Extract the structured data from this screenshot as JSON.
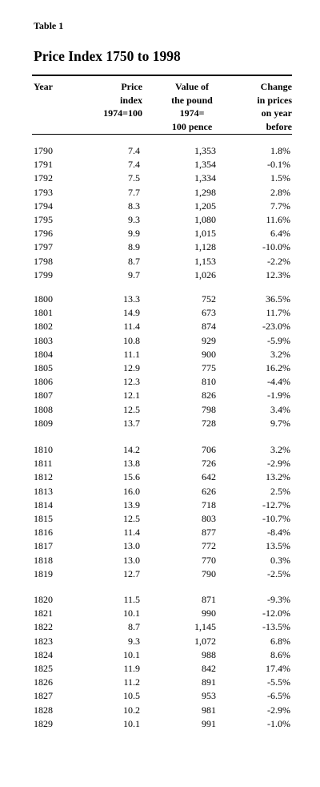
{
  "table_label": "Table 1",
  "title": "Price Index 1750 to 1998",
  "headers": {
    "year": [
      "Year"
    ],
    "index": [
      "Price",
      "index",
      "1974=100"
    ],
    "pound": [
      "Value of",
      "the pound",
      "1974=",
      "100 pence"
    ],
    "change": [
      "Change",
      "in prices",
      "on year",
      "before"
    ]
  },
  "groups": [
    [
      [
        "1790",
        "7.4",
        "1,353",
        "1.8%"
      ],
      [
        "1791",
        "7.4",
        "1,354",
        "-0.1%"
      ],
      [
        "1792",
        "7.5",
        "1,334",
        "1.5%"
      ],
      [
        "1793",
        "7.7",
        "1,298",
        "2.8%"
      ],
      [
        "1794",
        "8.3",
        "1,205",
        "7.7%"
      ],
      [
        "1795",
        "9.3",
        "1,080",
        "11.6%"
      ],
      [
        "1796",
        "9.9",
        "1,015",
        "6.4%"
      ],
      [
        "1797",
        "8.9",
        "1,128",
        "-10.0%"
      ],
      [
        "1798",
        "8.7",
        "1,153",
        "-2.2%"
      ],
      [
        "1799",
        "9.7",
        "1,026",
        "12.3%"
      ]
    ],
    [
      [
        "1800",
        "13.3",
        "752",
        "36.5%"
      ],
      [
        "1801",
        "14.9",
        "673",
        "11.7%"
      ],
      [
        "1802",
        "11.4",
        "874",
        "-23.0%"
      ],
      [
        "1803",
        "10.8",
        "929",
        "-5.9%"
      ],
      [
        "1804",
        "11.1",
        "900",
        "3.2%"
      ],
      [
        "1805",
        "12.9",
        "775",
        "16.2%"
      ],
      [
        "1806",
        "12.3",
        "810",
        "-4.4%"
      ],
      [
        "1807",
        "12.1",
        "826",
        "-1.9%"
      ],
      [
        "1808",
        "12.5",
        "798",
        "3.4%"
      ],
      [
        "1809",
        "13.7",
        "728",
        "9.7%"
      ]
    ],
    [
      [
        "1810",
        "14.2",
        "706",
        "3.2%"
      ],
      [
        "1811",
        "13.8",
        "726",
        "-2.9%"
      ],
      [
        "1812",
        "15.6",
        "642",
        "13.2%"
      ],
      [
        "1813",
        "16.0",
        "626",
        "2.5%"
      ],
      [
        "1814",
        "13.9",
        "718",
        "-12.7%"
      ],
      [
        "1815",
        "12.5",
        "803",
        "-10.7%"
      ],
      [
        "1816",
        "11.4",
        "877",
        "-8.4%"
      ],
      [
        "1817",
        "13.0",
        "772",
        "13.5%"
      ],
      [
        "1818",
        "13.0",
        "770",
        "0.3%"
      ],
      [
        "1819",
        "12.7",
        "790",
        "-2.5%"
      ]
    ],
    [
      [
        "1820",
        "11.5",
        "871",
        "-9.3%"
      ],
      [
        "1821",
        "10.1",
        "990",
        "-12.0%"
      ],
      [
        "1822",
        "8.7",
        "1,145",
        "-13.5%"
      ],
      [
        "1823",
        "9.3",
        "1,072",
        "6.8%"
      ],
      [
        "1824",
        "10.1",
        "988",
        "8.6%"
      ],
      [
        "1825",
        "11.9",
        "842",
        "17.4%"
      ],
      [
        "1826",
        "11.2",
        "891",
        "-5.5%"
      ],
      [
        "1827",
        "10.5",
        "953",
        "-6.5%"
      ],
      [
        "1828",
        "10.2",
        "981",
        "-2.9%"
      ],
      [
        "1829",
        "10.1",
        "991",
        "-1.0%"
      ]
    ]
  ]
}
